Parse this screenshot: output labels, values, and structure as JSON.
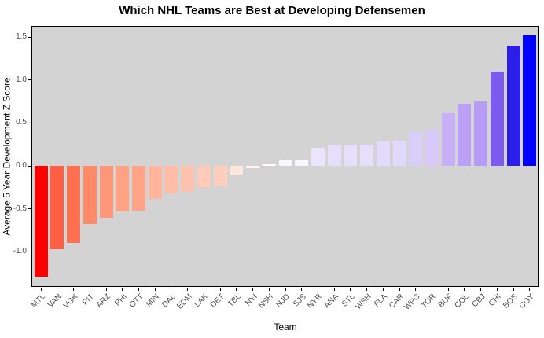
{
  "chart_data": {
    "type": "bar",
    "title": "Which NHL Teams are Best at Developing Defensemen",
    "xlabel": "Team",
    "ylabel": "Average 5 Year Development Z Score",
    "ylim": [
      -1.41,
      1.63
    ],
    "grid": false,
    "legend": "none",
    "panel_bg": "#D3D3D3",
    "panel_border": "#000000",
    "axis_text_color": "#4D4D4D",
    "gradient": {
      "low": "#FF0000",
      "mid": "#FFFFFF",
      "high": "#0000FF"
    },
    "yticks": [
      {
        "value": 1.5,
        "label": "1.5"
      },
      {
        "value": 1.0,
        "label": "1.0"
      },
      {
        "value": 0.5,
        "label": "0.5"
      },
      {
        "value": 0.0,
        "label": "0.0"
      },
      {
        "value": -0.5,
        "label": "-0.5"
      },
      {
        "value": -1.0,
        "label": "-1.0"
      }
    ],
    "categories": [
      "MTL",
      "VAN",
      "VGK",
      "PIT",
      "ARZ",
      "PHI",
      "OTT",
      "MIN",
      "DAL",
      "EDM",
      "LAK",
      "DET",
      "TBL",
      "NYI",
      "NSH",
      "NJD",
      "SJS",
      "NYR",
      "ANA",
      "STL",
      "WSH",
      "FLA",
      "CAR",
      "WPG",
      "TOR",
      "BUF",
      "COL",
      "CBJ",
      "CHI",
      "BOS",
      "CGY"
    ],
    "values": [
      -1.29,
      -0.97,
      -0.9,
      -0.68,
      -0.6,
      -0.53,
      -0.52,
      -0.38,
      -0.32,
      -0.3,
      -0.25,
      -0.23,
      -0.1,
      -0.03,
      0.02,
      0.07,
      0.07,
      0.21,
      0.25,
      0.25,
      0.25,
      0.28,
      0.29,
      0.39,
      0.42,
      0.61,
      0.72,
      0.75,
      1.1,
      1.4,
      1.52
    ],
    "bar_colors": [
      "#FF0000",
      "#FF6044",
      "#FF7050",
      "#FF8A68",
      "#FF9678",
      "#FFA284",
      "#FFA486",
      "#FFB49C",
      "#FFBCA6",
      "#FFC2AE",
      "#FFCAB8",
      "#FFCEBC",
      "#FFE6DC",
      "#FFF6F2",
      "#FDFBFE",
      "#F9F6FE",
      "#F9F6FE",
      "#EAE4FC",
      "#E6DFFC",
      "#E6DFFC",
      "#E6DFFC",
      "#E3DBFB",
      "#E1D9FB",
      "#D9CDFA",
      "#D6C9FA",
      "#C6B0F8",
      "#BAA0F7",
      "#B79CF7",
      "#7C5AF0",
      "#2B1EE8",
      "#0000FF"
    ]
  }
}
